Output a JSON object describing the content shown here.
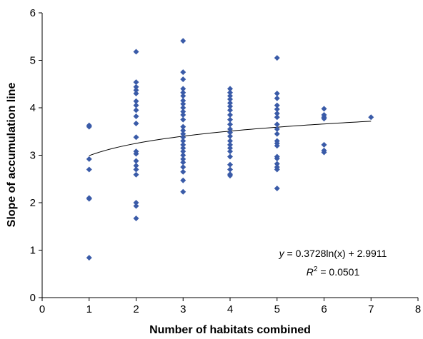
{
  "chart_data": {
    "type": "scatter",
    "title": "",
    "xlabel": "Number of habitats combined",
    "ylabel": "Slope of accumulation line",
    "xlim": [
      0,
      8
    ],
    "ylim": [
      0,
      6
    ],
    "xticks": [
      0,
      1,
      2,
      3,
      4,
      5,
      6,
      7,
      8
    ],
    "yticks": [
      0,
      1,
      2,
      3,
      4,
      5,
      6
    ],
    "grid": false,
    "marker": "diamond",
    "point_color": "#3a5ba8",
    "trendline_color": "#000000",
    "series": [
      {
        "points": [
          [
            1,
            3.63
          ],
          [
            1,
            3.6
          ],
          [
            1,
            2.92
          ],
          [
            1,
            2.7
          ],
          [
            1,
            2.1
          ],
          [
            1,
            2.08
          ],
          [
            1,
            0.84
          ],
          [
            2,
            5.18
          ],
          [
            2,
            4.54
          ],
          [
            2,
            4.44
          ],
          [
            2,
            4.37
          ],
          [
            2,
            4.3
          ],
          [
            2,
            4.14
          ],
          [
            2,
            4.05
          ],
          [
            2,
            3.95
          ],
          [
            2,
            3.82
          ],
          [
            2,
            3.67
          ],
          [
            2,
            3.38
          ],
          [
            2,
            3.08
          ],
          [
            2,
            3.03
          ],
          [
            2,
            2.88
          ],
          [
            2,
            2.78
          ],
          [
            2,
            2.7
          ],
          [
            2,
            2.59
          ],
          [
            2,
            2.0
          ],
          [
            2,
            1.93
          ],
          [
            2,
            1.67
          ],
          [
            3,
            5.41
          ],
          [
            3,
            4.75
          ],
          [
            3,
            4.6
          ],
          [
            3,
            4.4
          ],
          [
            3,
            4.32
          ],
          [
            3,
            4.25
          ],
          [
            3,
            4.15
          ],
          [
            3,
            4.08
          ],
          [
            3,
            4.0
          ],
          [
            3,
            3.92
          ],
          [
            3,
            3.85
          ],
          [
            3,
            3.75
          ],
          [
            3,
            3.6
          ],
          [
            3,
            3.52
          ],
          [
            3,
            3.45
          ],
          [
            3,
            3.38
          ],
          [
            3,
            3.3
          ],
          [
            3,
            3.22
          ],
          [
            3,
            3.15
          ],
          [
            3,
            3.08
          ],
          [
            3,
            3.0
          ],
          [
            3,
            2.92
          ],
          [
            3,
            2.85
          ],
          [
            3,
            2.75
          ],
          [
            3,
            2.65
          ],
          [
            3,
            2.47
          ],
          [
            3,
            2.23
          ],
          [
            4,
            4.4
          ],
          [
            4,
            4.32
          ],
          [
            4,
            4.25
          ],
          [
            4,
            4.18
          ],
          [
            4,
            4.1
          ],
          [
            4,
            4.03
          ],
          [
            4,
            3.95
          ],
          [
            4,
            3.85
          ],
          [
            4,
            3.75
          ],
          [
            4,
            3.65
          ],
          [
            4,
            3.55
          ],
          [
            4,
            3.48
          ],
          [
            4,
            3.4
          ],
          [
            4,
            3.3
          ],
          [
            4,
            3.22
          ],
          [
            4,
            3.15
          ],
          [
            4,
            3.08
          ],
          [
            4,
            2.97
          ],
          [
            4,
            2.8
          ],
          [
            4,
            2.7
          ],
          [
            4,
            2.6
          ],
          [
            4,
            2.57
          ],
          [
            5,
            5.05
          ],
          [
            5,
            4.3
          ],
          [
            5,
            4.2
          ],
          [
            5,
            4.05
          ],
          [
            5,
            3.97
          ],
          [
            5,
            3.88
          ],
          [
            5,
            3.8
          ],
          [
            5,
            3.65
          ],
          [
            5,
            3.55
          ],
          [
            5,
            3.45
          ],
          [
            5,
            3.3
          ],
          [
            5,
            3.25
          ],
          [
            5,
            3.2
          ],
          [
            5,
            2.97
          ],
          [
            5,
            2.93
          ],
          [
            5,
            2.82
          ],
          [
            5,
            2.75
          ],
          [
            5,
            2.7
          ],
          [
            5,
            2.3
          ],
          [
            6,
            3.98
          ],
          [
            6,
            3.85
          ],
          [
            6,
            3.8
          ],
          [
            6,
            3.77
          ],
          [
            6,
            3.22
          ],
          [
            6,
            3.1
          ],
          [
            6,
            3.06
          ],
          [
            7,
            3.8
          ]
        ]
      }
    ],
    "trendline": {
      "type": "logarithmic",
      "a": 0.3728,
      "b": 2.9911,
      "x_from": 1,
      "x_to": 7
    },
    "annotations": {
      "equation": {
        "prefix": "y",
        "rest": " = 0.3728ln(x) + 2.9911"
      },
      "r_squared": {
        "symbol": "R",
        "sup": "2",
        "rest": " = 0.0501"
      }
    }
  }
}
